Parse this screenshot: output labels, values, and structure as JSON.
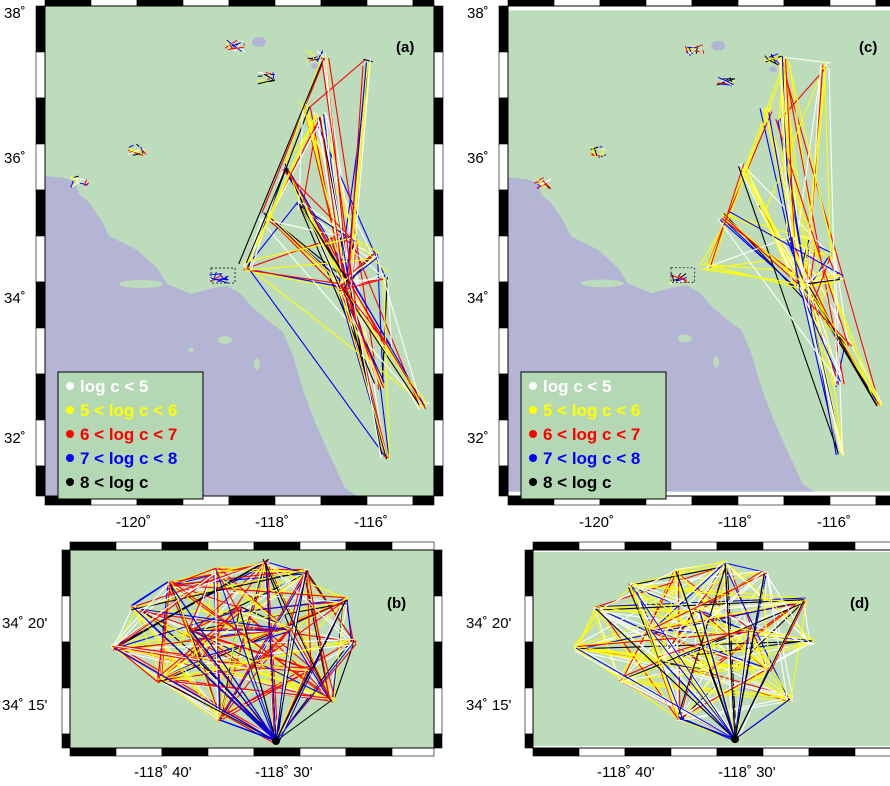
{
  "colors": {
    "land": "#bcdcbc",
    "sea": "#b4b4d4",
    "frame_black": "#000000",
    "frame_white": "#ffffff",
    "legend_bg": "#b4d8b4",
    "white_class": "#ffffff",
    "yellow_class": "#ffff00",
    "red_class": "#ff0000",
    "blue_class": "#0000ff",
    "black_class": "#000000"
  },
  "panels": [
    {
      "id": "a",
      "label": "(a)"
    },
    {
      "id": "b",
      "label": "(b)"
    },
    {
      "id": "c",
      "label": "(c)"
    },
    {
      "id": "d",
      "label": "(d)"
    }
  ],
  "large_map": {
    "lat_labels": [
      "38˚",
      "36˚",
      "34˚",
      "32˚"
    ],
    "lon_labels": [
      "-120˚",
      "-118˚",
      "-116˚"
    ]
  },
  "zoom_map": {
    "lat_labels": [
      "34˚ 20'",
      "34˚ 15'"
    ],
    "lon_labels": [
      "-118˚ 40'",
      "-118˚ 30'"
    ]
  },
  "legend": [
    {
      "text": "log c < 5",
      "color": "#ffffff"
    },
    {
      "text": "5 < log c < 6",
      "color": "#ffff00"
    },
    {
      "text": "6 < log c < 7",
      "color": "#ff0000"
    },
    {
      "text": "7 < log c < 8",
      "color": "#0000ff"
    },
    {
      "text": "8 < log c",
      "color": "#000000"
    }
  ]
}
